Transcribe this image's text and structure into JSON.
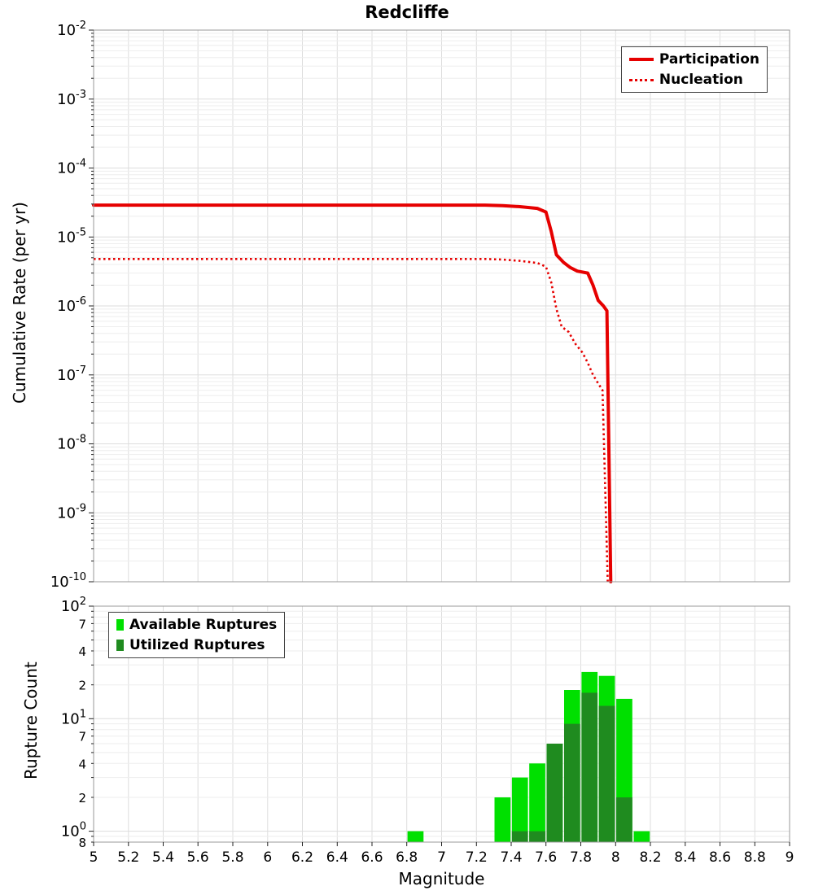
{
  "title": "Redcliffe",
  "xlabel": "Magnitude",
  "colors": {
    "participation": "#e60000",
    "nucleation": "#e60000",
    "available": "#00e000",
    "utilized": "#1f8b1f",
    "grid_major": "#dddddd",
    "grid_minor": "#eeeeee",
    "axis_border": "#999999",
    "tick": "#222222"
  },
  "x_axis": {
    "values": [
      5,
      5.2,
      5.4,
      5.6,
      5.8,
      6,
      6.2,
      6.4,
      6.6,
      6.8,
      7,
      7.2,
      7.4,
      7.6,
      7.8,
      8,
      8.2,
      8.4,
      8.6,
      8.8,
      9
    ],
    "labels": [
      "5",
      "5.2",
      "5.4",
      "5.6",
      "5.8",
      "6",
      "6.2",
      "6.4",
      "6.6",
      "6.8",
      "7",
      "7.2",
      "7.4",
      "7.6",
      "7.8",
      "8",
      "8.2",
      "8.4",
      "8.6",
      "8.8",
      "9"
    ]
  },
  "chart_data": [
    {
      "type": "line",
      "title": "Redcliffe",
      "xlabel": "Magnitude",
      "ylabel": "Cumulative Rate (per yr)",
      "xlim": [
        5,
        9
      ],
      "ylim": [
        1e-10,
        0.01
      ],
      "yscale": "log",
      "grid": true,
      "legend_position": "top-right",
      "y_ticks": [
        {
          "v": 0.01,
          "label": "10^-2"
        },
        {
          "v": 0.001,
          "label": "10^-3"
        },
        {
          "v": 0.0001,
          "label": "10^-4"
        },
        {
          "v": 1e-05,
          "label": "10^-5"
        },
        {
          "v": 1e-06,
          "label": "10^-6"
        },
        {
          "v": 1e-07,
          "label": "10^-7"
        },
        {
          "v": 1e-08,
          "label": "10^-8"
        },
        {
          "v": 1e-09,
          "label": "10^-9"
        },
        {
          "v": 1e-10,
          "label": "10^-10"
        }
      ],
      "series": [
        {
          "name": "Participation",
          "style": "solid",
          "color": "#e60000",
          "points": [
            [
              5.0,
              2.9e-05
            ],
            [
              5.5,
              2.9e-05
            ],
            [
              6.0,
              2.9e-05
            ],
            [
              6.5,
              2.9e-05
            ],
            [
              7.0,
              2.9e-05
            ],
            [
              7.25,
              2.9e-05
            ],
            [
              7.35,
              2.85e-05
            ],
            [
              7.45,
              2.75e-05
            ],
            [
              7.55,
              2.6e-05
            ],
            [
              7.6,
              2.3e-05
            ],
            [
              7.63,
              1.2e-05
            ],
            [
              7.66,
              5.5e-06
            ],
            [
              7.7,
              4.3e-06
            ],
            [
              7.74,
              3.6e-06
            ],
            [
              7.78,
              3.2e-06
            ],
            [
              7.84,
              3e-06
            ],
            [
              7.87,
              2e-06
            ],
            [
              7.9,
              1.2e-06
            ],
            [
              7.93,
              1e-06
            ],
            [
              7.95,
              8.5e-07
            ],
            [
              7.972,
              1e-10
            ]
          ]
        },
        {
          "name": "Nucleation",
          "style": "dotted",
          "color": "#e60000",
          "points": [
            [
              5.0,
              4.8e-06
            ],
            [
              5.5,
              4.8e-06
            ],
            [
              6.0,
              4.8e-06
            ],
            [
              6.5,
              4.8e-06
            ],
            [
              7.0,
              4.8e-06
            ],
            [
              7.25,
              4.8e-06
            ],
            [
              7.35,
              4.7e-06
            ],
            [
              7.45,
              4.5e-06
            ],
            [
              7.55,
              4.2e-06
            ],
            [
              7.6,
              3.7e-06
            ],
            [
              7.63,
              2.2e-06
            ],
            [
              7.66,
              9e-07
            ],
            [
              7.69,
              5e-07
            ],
            [
              7.73,
              4.2e-07
            ],
            [
              7.77,
              2.8e-07
            ],
            [
              7.81,
              2.1e-07
            ],
            [
              7.84,
              1.5e-07
            ],
            [
              7.87,
              1e-07
            ],
            [
              7.9,
              7.5e-08
            ],
            [
              7.925,
              6e-08
            ],
            [
              7.955,
              1e-10
            ]
          ]
        }
      ]
    },
    {
      "type": "bar",
      "ylabel": "Rupture Count",
      "xlim": [
        5,
        9
      ],
      "ylim": [
        0.8,
        100
      ],
      "yscale": "log",
      "bar_width": 0.1,
      "grid": true,
      "legend_position": "top-left",
      "y_ticks": [
        {
          "v": 100,
          "label": "10^2"
        },
        {
          "v": 70,
          "label": "7"
        },
        {
          "v": 40,
          "label": "4"
        },
        {
          "v": 20,
          "label": "2"
        },
        {
          "v": 10,
          "label": "10^1"
        },
        {
          "v": 7,
          "label": "7"
        },
        {
          "v": 4,
          "label": "4"
        },
        {
          "v": 2,
          "label": "2"
        },
        {
          "v": 1,
          "label": "10^0"
        },
        {
          "v": 0.8,
          "label": "8"
        }
      ],
      "series": [
        {
          "name": "Available Ruptures",
          "color": "#00e000",
          "categories": [
            6.85,
            7.35,
            7.45,
            7.55,
            7.65,
            7.75,
            7.85,
            7.95,
            8.05,
            8.15
          ],
          "values": [
            1,
            2,
            3,
            4,
            6,
            18,
            26,
            24,
            15,
            1
          ]
        },
        {
          "name": "Utilized Ruptures",
          "color": "#1f8b1f",
          "categories": [
            7.45,
            7.55,
            7.65,
            7.75,
            7.85,
            7.95,
            8.05
          ],
          "values": [
            1,
            1,
            6,
            9,
            17,
            13,
            2
          ]
        }
      ]
    }
  ]
}
